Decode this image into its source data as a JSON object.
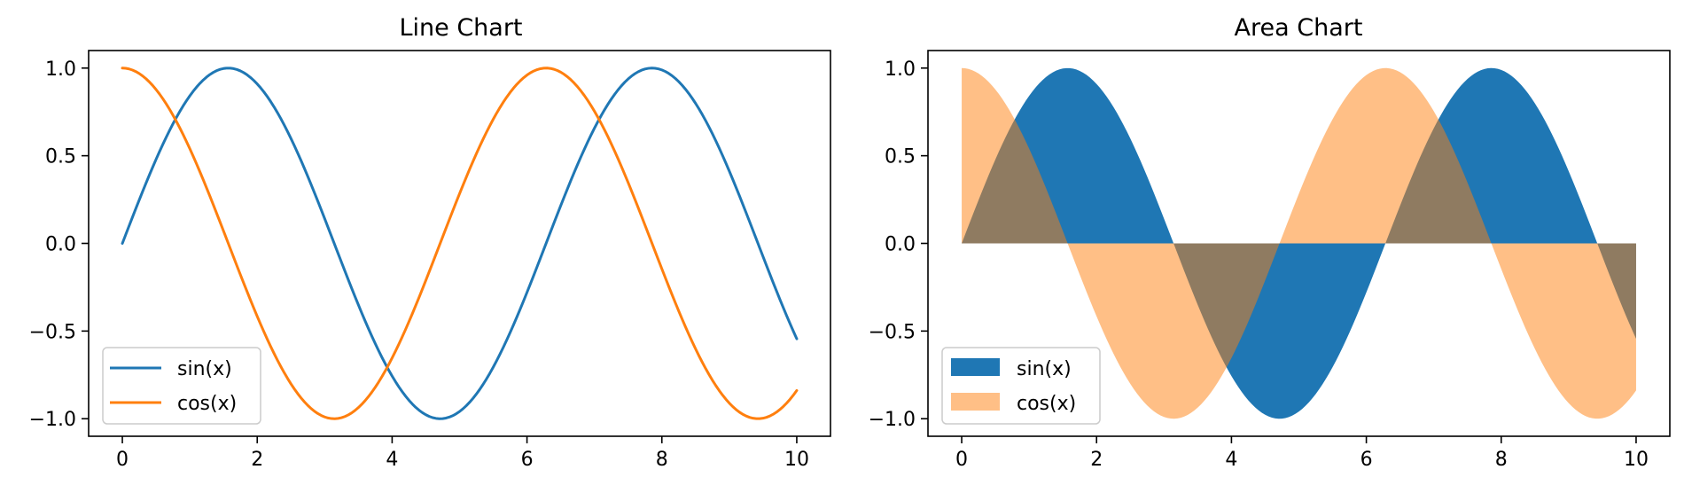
{
  "colors": {
    "sin": "#1f77b4",
    "cos": "#ff7f0e",
    "cos_fill": "#ffbe86",
    "overlap": "#8e7a5d",
    "axes": "#000000",
    "legend_border": "#cccccc"
  },
  "chart_data": [
    {
      "type": "line",
      "title": "Line Chart",
      "xlabel": "",
      "ylabel": "",
      "xlim": [
        -0.5,
        10.5
      ],
      "ylim": [
        -1.1,
        1.1
      ],
      "x_ticks": [
        0,
        2,
        4,
        6,
        8,
        10
      ],
      "x_tick_labels": [
        "0",
        "2",
        "4",
        "6",
        "8",
        "10"
      ],
      "y_ticks": [
        1.0,
        0.5,
        0.0,
        -0.5,
        -1.0
      ],
      "y_tick_labels": [
        "1.0",
        "0.5",
        "0.0",
        "−0.5",
        "−1.0"
      ],
      "grid": false,
      "legend_position": "lower-left",
      "series": [
        {
          "name": "sin(x)",
          "function": "sin",
          "x_range": [
            0,
            10
          ],
          "color_key": "sin"
        },
        {
          "name": "cos(x)",
          "function": "cos",
          "x_range": [
            0,
            10
          ],
          "color_key": "cos"
        }
      ]
    },
    {
      "type": "area",
      "title": "Area Chart",
      "xlabel": "",
      "ylabel": "",
      "xlim": [
        -0.5,
        10.5
      ],
      "ylim": [
        -1.1,
        1.1
      ],
      "x_ticks": [
        0,
        2,
        4,
        6,
        8,
        10
      ],
      "x_tick_labels": [
        "0",
        "2",
        "4",
        "6",
        "8",
        "10"
      ],
      "y_ticks": [
        1.0,
        0.5,
        0.0,
        -0.5,
        -1.0
      ],
      "y_tick_labels": [
        "1.0",
        "0.5",
        "0.0",
        "−0.5",
        "−1.0"
      ],
      "grid": false,
      "legend_position": "lower-left",
      "series": [
        {
          "name": "sin(x)",
          "function": "sin",
          "x_range": [
            0,
            10
          ],
          "color_key": "sin",
          "alpha": 1.0
        },
        {
          "name": "cos(x)",
          "function": "cos",
          "x_range": [
            0,
            10
          ],
          "color_key": "cos",
          "alpha": 0.5
        }
      ]
    }
  ]
}
